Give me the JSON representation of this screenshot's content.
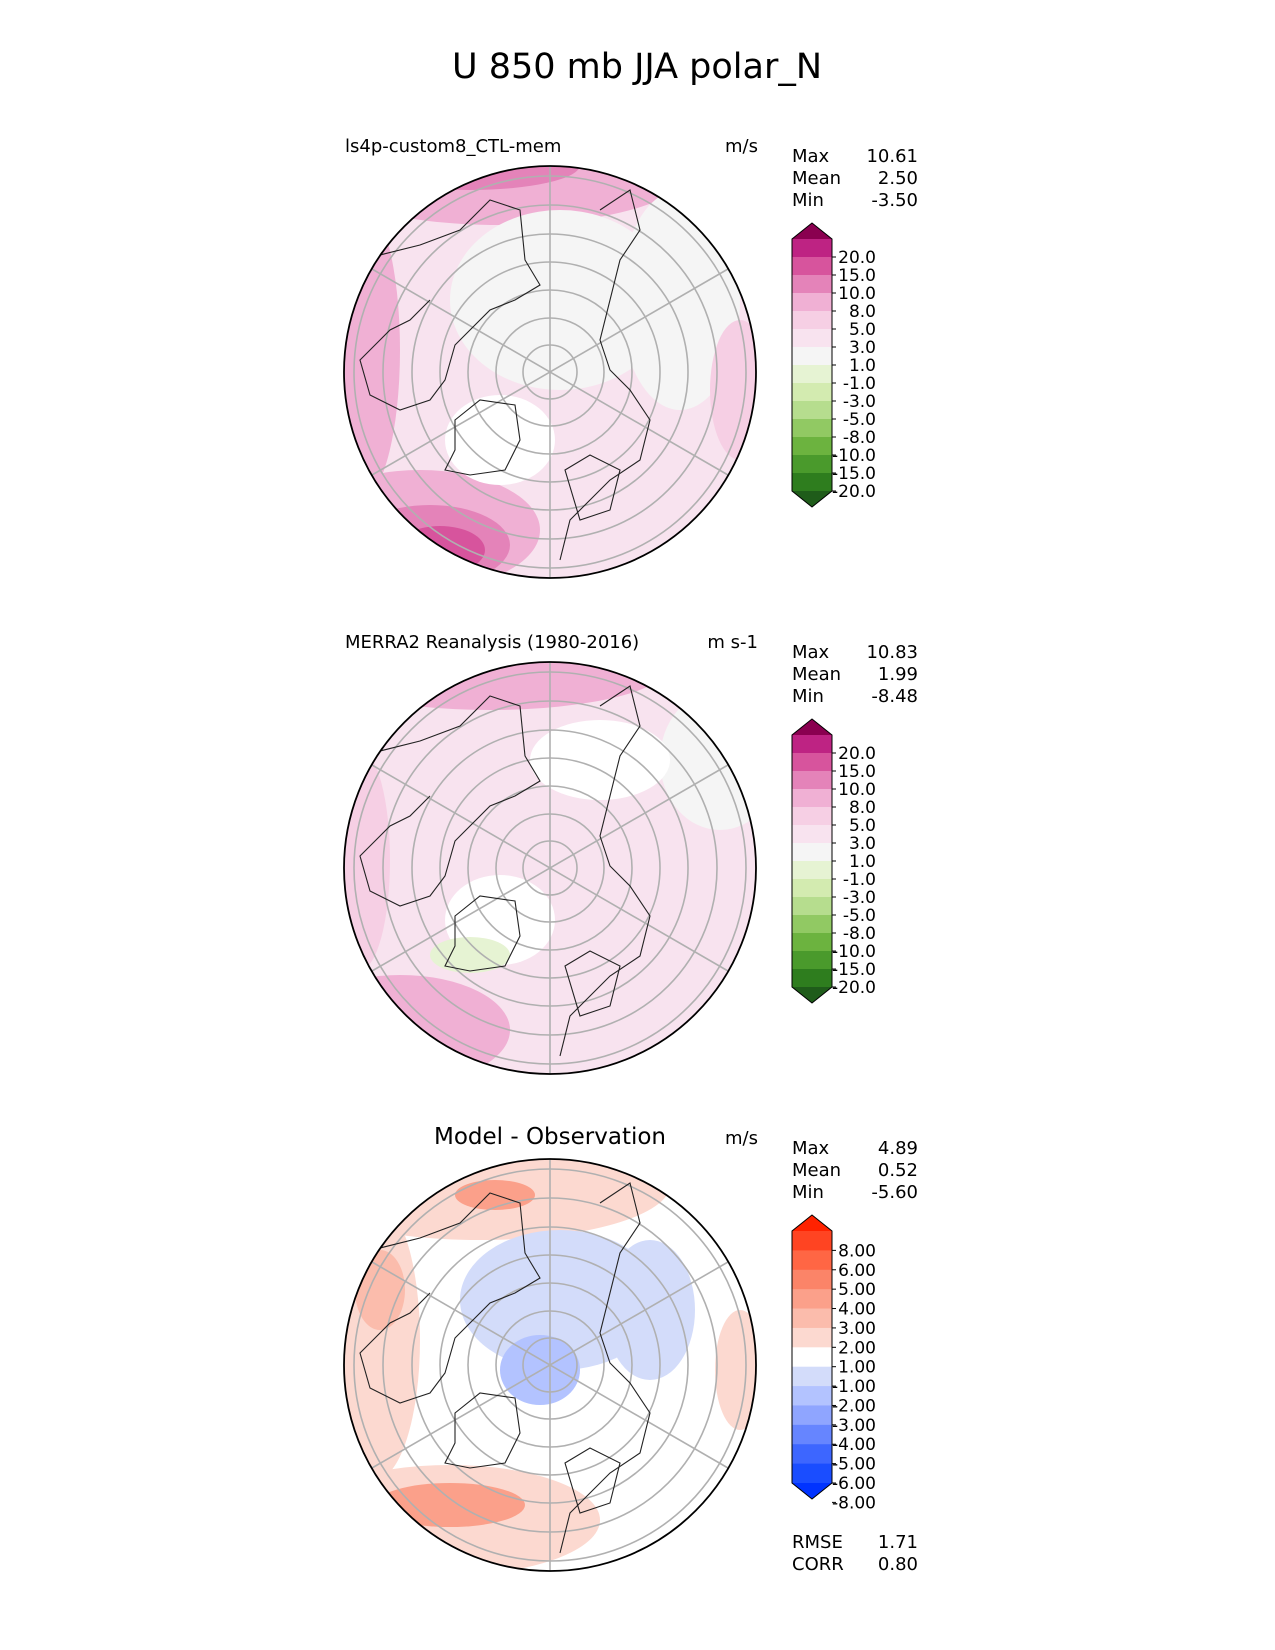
{
  "figure": {
    "title": "U 850 mb JJA polar_N"
  },
  "colors": {
    "pink_scale": [
      "#1f5c1a",
      "#2e7d1e",
      "#4a9a2c",
      "#6cb33f",
      "#91c963",
      "#b6dd8e",
      "#d3ebb0",
      "#e6f3d3",
      "#f5f5f5",
      "#f8e3ef",
      "#f6cfe4",
      "#f0b0d4",
      "#e483b9",
      "#d7549d",
      "#be2383",
      "#8a0050"
    ],
    "diff_scale": [
      "#0033ff",
      "#1a4dff",
      "#3d66ff",
      "#6685ff",
      "#8fa5ff",
      "#b3c3ff",
      "#d3dcfa",
      "#ffffff",
      "#fcd9d0",
      "#fbbcac",
      "#fba08a",
      "#fb8468",
      "#ff6644",
      "#ff4422",
      "#ff2200"
    ]
  },
  "panels": [
    {
      "title": "ls4p-custom8_CTL-mem",
      "units": "m/s",
      "stats": [
        {
          "label": "Max",
          "value": "10.61"
        },
        {
          "label": "Mean",
          "value": "2.50"
        },
        {
          "label": "Min",
          "value": "-3.50"
        }
      ],
      "colorbar": {
        "scale": "pink_scale",
        "ticks": [
          "20.0",
          "15.0",
          "10.0",
          "8.0",
          "5.0",
          "3.0",
          "1.0",
          "-1.0",
          "-3.0",
          "-5.0",
          "-8.0",
          "-10.0",
          "-15.0",
          "-20.0"
        ]
      }
    },
    {
      "title": "MERRA2 Reanalysis (1980-2016)",
      "units": "m s-1",
      "stats": [
        {
          "label": "Max",
          "value": "10.83"
        },
        {
          "label": "Mean",
          "value": "1.99"
        },
        {
          "label": "Min",
          "value": "-8.48"
        }
      ],
      "colorbar": {
        "scale": "pink_scale",
        "ticks": [
          "20.0",
          "15.0",
          "10.0",
          "8.0",
          "5.0",
          "3.0",
          "1.0",
          "-1.0",
          "-3.0",
          "-5.0",
          "-8.0",
          "-10.0",
          "-15.0",
          "-20.0"
        ]
      }
    },
    {
      "title": "Model - Observation",
      "units": "m/s",
      "stats": [
        {
          "label": "Max",
          "value": "4.89"
        },
        {
          "label": "Mean",
          "value": "0.52"
        },
        {
          "label": "Min",
          "value": "-5.60"
        }
      ],
      "colorbar": {
        "scale": "diff_scale",
        "ticks": [
          "8.00",
          "6.00",
          "5.00",
          "4.00",
          "3.00",
          "2.00",
          "1.00",
          "-1.00",
          "-2.00",
          "-3.00",
          "-4.00",
          "-5.00",
          "-6.00",
          "-8.00"
        ]
      },
      "metrics": [
        {
          "label": "RMSE",
          "value": "1.71"
        },
        {
          "label": "CORR",
          "value": "0.80"
        }
      ]
    }
  ],
  "chart_data": [
    {
      "type": "heatmap",
      "projection": "north polar stereographic",
      "title": "ls4p-custom8_CTL-mem",
      "units": "m/s",
      "max": 10.61,
      "mean": 2.5,
      "min": -3.5,
      "levels": [
        -20,
        -15,
        -10,
        -8,
        -5,
        -3,
        -1,
        1,
        3,
        5,
        8,
        10,
        15,
        20
      ]
    },
    {
      "type": "heatmap",
      "projection": "north polar stereographic",
      "title": "MERRA2 Reanalysis (1980-2016)",
      "units": "m s-1",
      "max": 10.83,
      "mean": 1.99,
      "min": -8.48,
      "levels": [
        -20,
        -15,
        -10,
        -8,
        -5,
        -3,
        -1,
        1,
        3,
        5,
        8,
        10,
        15,
        20
      ]
    },
    {
      "type": "heatmap",
      "projection": "north polar stereographic",
      "title": "Model - Observation",
      "units": "m/s",
      "max": 4.89,
      "mean": 0.52,
      "min": -5.6,
      "rmse": 1.71,
      "corr": 0.8,
      "levels": [
        -8,
        -6,
        -5,
        -4,
        -3,
        -2,
        -1,
        1,
        2,
        3,
        4,
        5,
        6,
        8
      ]
    }
  ]
}
